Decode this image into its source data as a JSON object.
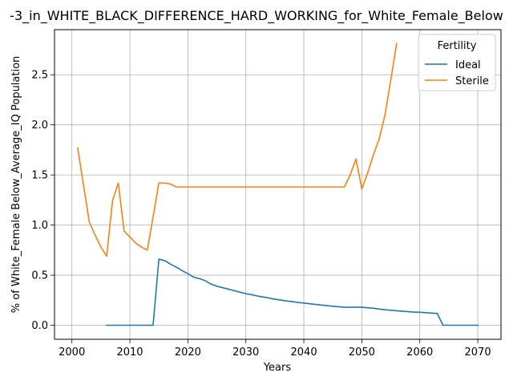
{
  "chart_data": {
    "type": "line",
    "title": "-3_in_WHITE_BLACK_DIFFERENCE_HARD_WORKING_for_White_Female_Below",
    "xlabel": "Years",
    "ylabel": "% of White_Female Below_Average_IQ Population",
    "xlim": [
      1997,
      2074
    ],
    "ylim": [
      -0.14,
      2.95
    ],
    "xticks": [
      2000,
      2010,
      2020,
      2030,
      2040,
      2050,
      2060,
      2070
    ],
    "yticks": [
      0.0,
      0.5,
      1.0,
      1.5,
      2.0,
      2.5
    ],
    "grid": true,
    "legend": {
      "title": "Fertility",
      "placement": "top-right"
    },
    "series": [
      {
        "name": "Ideal",
        "color": "#1f77b4",
        "points": [
          [
            2006,
            0.0
          ],
          [
            2007,
            0.0
          ],
          [
            2008,
            0.0
          ],
          [
            2009,
            0.0
          ],
          [
            2010,
            0.0
          ],
          [
            2011,
            0.0
          ],
          [
            2012,
            0.0
          ],
          [
            2013,
            0.0
          ],
          [
            2014,
            0.0
          ],
          [
            2015,
            0.66
          ],
          [
            2016,
            0.645
          ],
          [
            2017,
            0.61
          ],
          [
            2018,
            0.58
          ],
          [
            2019,
            0.545
          ],
          [
            2020,
            0.515
          ],
          [
            2021,
            0.48
          ],
          [
            2022,
            0.465
          ],
          [
            2023,
            0.445
          ],
          [
            2024,
            0.41
          ],
          [
            2025,
            0.39
          ],
          [
            2026,
            0.375
          ],
          [
            2027,
            0.36
          ],
          [
            2028,
            0.345
          ],
          [
            2029,
            0.33
          ],
          [
            2030,
            0.315
          ],
          [
            2031,
            0.305
          ],
          [
            2032,
            0.292
          ],
          [
            2033,
            0.282
          ],
          [
            2034,
            0.272
          ],
          [
            2035,
            0.26
          ],
          [
            2036,
            0.252
          ],
          [
            2037,
            0.243
          ],
          [
            2038,
            0.236
          ],
          [
            2039,
            0.228
          ],
          [
            2040,
            0.222
          ],
          [
            2041,
            0.215
          ],
          [
            2042,
            0.208
          ],
          [
            2043,
            0.202
          ],
          [
            2044,
            0.196
          ],
          [
            2045,
            0.19
          ],
          [
            2046,
            0.185
          ],
          [
            2047,
            0.18
          ],
          [
            2048,
            0.18
          ],
          [
            2049,
            0.18
          ],
          [
            2050,
            0.18
          ],
          [
            2051,
            0.175
          ],
          [
            2052,
            0.17
          ],
          [
            2053,
            0.162
          ],
          [
            2054,
            0.155
          ],
          [
            2055,
            0.15
          ],
          [
            2056,
            0.145
          ],
          [
            2057,
            0.14
          ],
          [
            2058,
            0.136
          ],
          [
            2059,
            0.132
          ],
          [
            2060,
            0.13
          ],
          [
            2061,
            0.126
          ],
          [
            2062,
            0.122
          ],
          [
            2063,
            0.118
          ],
          [
            2064,
            0.0
          ],
          [
            2065,
            0.0
          ],
          [
            2066,
            0.0
          ],
          [
            2067,
            0.0
          ],
          [
            2068,
            0.0
          ],
          [
            2069,
            0.0
          ],
          [
            2070,
            0.0
          ]
        ]
      },
      {
        "name": "Sterile",
        "color": "#ff7f0e",
        "points": [
          [
            2001,
            1.77
          ],
          [
            2002,
            1.4
          ],
          [
            2003,
            1.03
          ],
          [
            2004,
            0.9
          ],
          [
            2005,
            0.78
          ],
          [
            2006,
            0.69
          ],
          [
            2007,
            1.24
          ],
          [
            2008,
            1.42
          ],
          [
            2009,
            0.94
          ],
          [
            2010,
            0.88
          ],
          [
            2011,
            0.82
          ],
          [
            2012,
            0.78
          ],
          [
            2013,
            0.75
          ],
          [
            2014,
            1.08
          ],
          [
            2015,
            1.42
          ],
          [
            2016,
            1.42
          ],
          [
            2017,
            1.41
          ],
          [
            2018,
            1.38
          ],
          [
            2019,
            1.38
          ],
          [
            2020,
            1.38
          ],
          [
            2025,
            1.38
          ],
          [
            2030,
            1.38
          ],
          [
            2035,
            1.38
          ],
          [
            2040,
            1.38
          ],
          [
            2045,
            1.38
          ],
          [
            2047,
            1.38
          ],
          [
            2048,
            1.5
          ],
          [
            2049,
            1.66
          ],
          [
            2050,
            1.36
          ],
          [
            2051,
            1.52
          ],
          [
            2052,
            1.7
          ],
          [
            2053,
            1.86
          ],
          [
            2054,
            2.1
          ],
          [
            2055,
            2.45
          ],
          [
            2056,
            2.81
          ]
        ]
      }
    ]
  }
}
